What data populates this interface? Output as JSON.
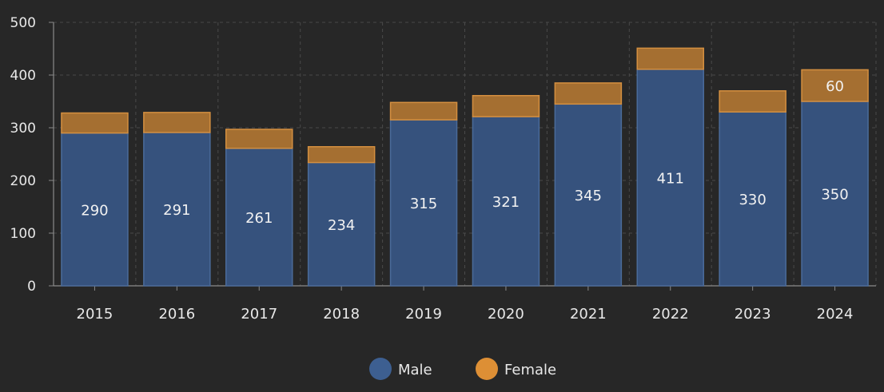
{
  "chart_data": {
    "type": "bar",
    "stacked": true,
    "title": "",
    "xlabel": "",
    "ylabel": "",
    "ylim": [
      0,
      500
    ],
    "yticks": [
      0,
      100,
      200,
      300,
      400,
      500
    ],
    "grid": true,
    "legend_position": "bottom-center",
    "categories": [
      "2015",
      "2016",
      "2017",
      "2018",
      "2019",
      "2020",
      "2021",
      "2022",
      "2023",
      "2024"
    ],
    "series": [
      {
        "name": "Male",
        "color": "#36527d",
        "border": "#4a6b9a",
        "legend_color": "#3d5f91",
        "values": [
          290,
          291,
          261,
          234,
          315,
          321,
          345,
          411,
          330,
          350
        ],
        "labels": [
          "290",
          "291",
          "261",
          "234",
          "315",
          "321",
          "345",
          "411",
          "330",
          "350"
        ]
      },
      {
        "name": "Female",
        "color": "#a56f31",
        "border": "#d48f40",
        "legend_color": "#dd8f35",
        "values": [
          38,
          38,
          36,
          30,
          33,
          40,
          40,
          40,
          40,
          60
        ],
        "labels": [
          "",
          "",
          "",
          "",
          "",
          "",
          "",
          "",
          "",
          "60"
        ]
      }
    ]
  }
}
